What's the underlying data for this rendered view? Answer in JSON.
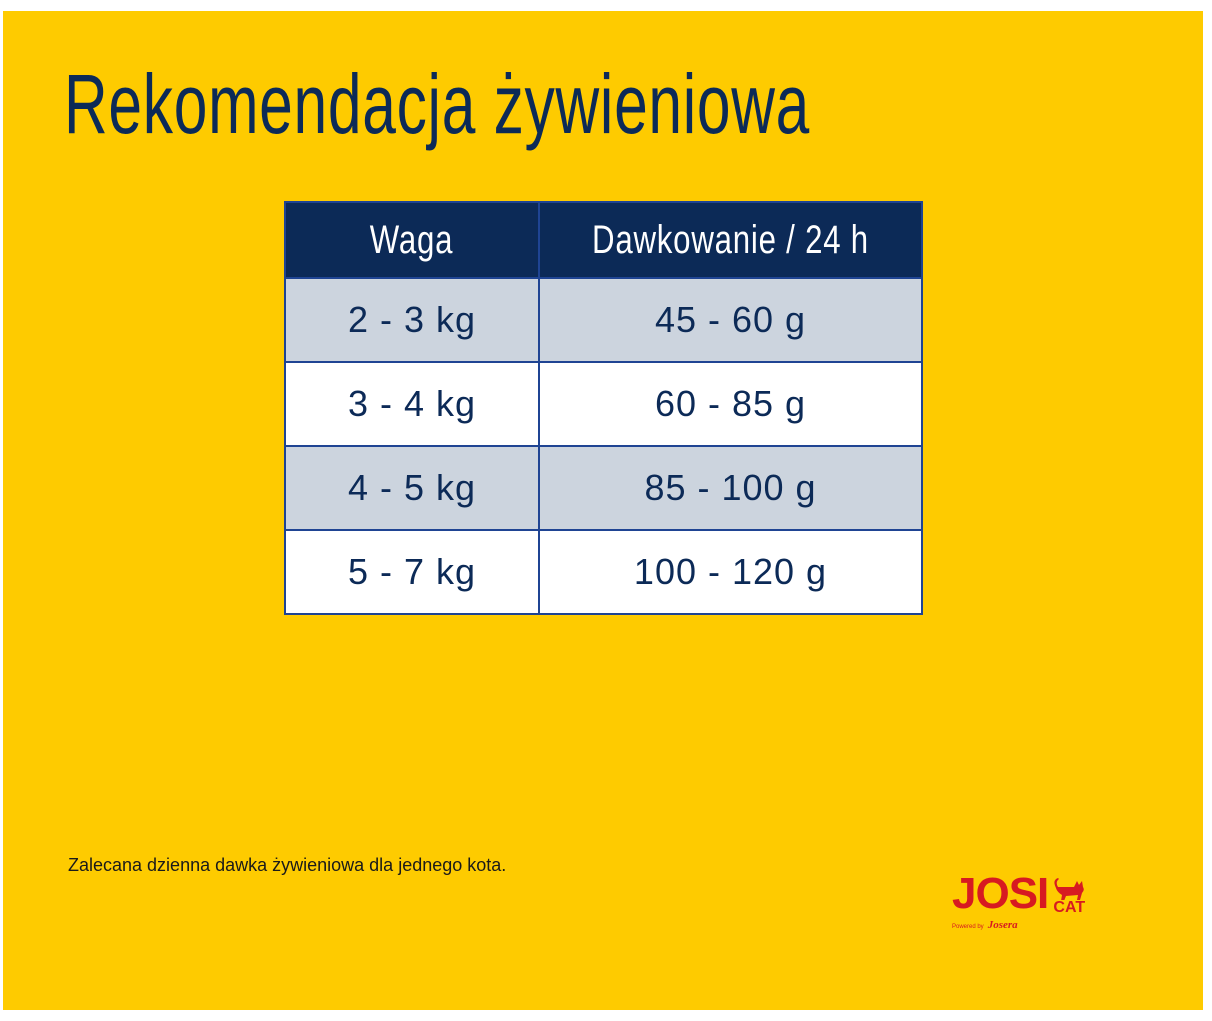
{
  "title": "Rekomendacja żywieniowa",
  "table": {
    "headers": [
      "Waga",
      "Dawkowanie / 24 h"
    ],
    "rows": [
      [
        "2 - 3 kg",
        "45 - 60 g"
      ],
      [
        "3 - 4 kg",
        "60 - 85 g"
      ],
      [
        "4 - 5 kg",
        "85 - 100 g"
      ],
      [
        "5 - 7 kg",
        "100 - 120 g"
      ]
    ]
  },
  "note": "Zalecana dzienna dawka żywieniowa dla jednego kota.",
  "logo": {
    "brand": "JOSI",
    "sub": "CAT",
    "powered": "Powered by",
    "maker": "Josera"
  },
  "colors": {
    "background": "#fecb00",
    "navy": "#0c2a57",
    "row_shade": "#ccd4de",
    "logo_red": "#d71a21"
  }
}
